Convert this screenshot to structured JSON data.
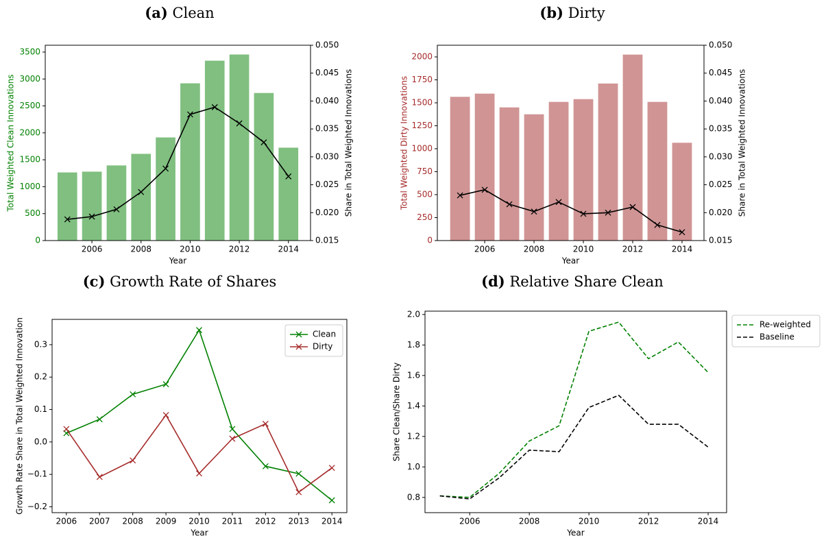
{
  "chart_data": [
    {
      "type": "bar",
      "panel_label": "(a)",
      "title": "Clean",
      "x": [
        2005,
        2006,
        2007,
        2008,
        2009,
        2010,
        2011,
        2012,
        2013,
        2014
      ],
      "values": [
        1265,
        1280,
        1395,
        1610,
        1915,
        2920,
        3340,
        3455,
        2740,
        1725
      ],
      "color": "#80bf80",
      "line": {
        "values": [
          0.0188,
          0.0193,
          0.0206,
          0.0237,
          0.0279,
          0.0376,
          0.0389,
          0.036,
          0.0326,
          0.0265
        ],
        "color": "#000000",
        "axis": "y2",
        "marker": "x"
      },
      "xlabel": "Year",
      "ylabel": "Total Weighted Clean Innovations",
      "ylabel_color": "#008000",
      "y2label": "Share in Total Weighted Innovations",
      "xlim": [
        2004.1,
        2014.9
      ],
      "xticks": [
        2006,
        2008,
        2010,
        2012,
        2014
      ],
      "ylim": [
        0,
        3627
      ],
      "yticks": [
        0,
        500,
        1000,
        1500,
        2000,
        2500,
        3000,
        3500
      ],
      "y2lim": [
        0.015,
        0.05
      ],
      "y2ticks": [
        {
          "value": 0.015,
          "label": "0.015"
        },
        {
          "value": 0.02,
          "label": "0.020"
        },
        {
          "value": 0.025,
          "label": "0.025"
        },
        {
          "value": 0.03,
          "label": "0.030"
        },
        {
          "value": 0.035,
          "label": "0.035"
        },
        {
          "value": 0.04,
          "label": "0.040"
        },
        {
          "value": 0.045,
          "label": "0.045"
        },
        {
          "value": 0.05,
          "label": "0.050"
        }
      ]
    },
    {
      "type": "bar",
      "panel_label": "(b)",
      "title": "Dirty",
      "x": [
        2005,
        2006,
        2007,
        2008,
        2009,
        2010,
        2011,
        2012,
        2013,
        2014
      ],
      "values": [
        1565,
        1600,
        1450,
        1375,
        1510,
        1540,
        1710,
        2025,
        1510,
        1065
      ],
      "color": "#d09494",
      "line": {
        "values": [
          0.0231,
          0.0241,
          0.0215,
          0.0202,
          0.0219,
          0.0198,
          0.02,
          0.021,
          0.0178,
          0.0165
        ],
        "color": "#000000",
        "axis": "y2",
        "marker": "x"
      },
      "xlabel": "Year",
      "ylabel": "Total Weighted Dirty Innovations",
      "ylabel_color": "#a52a2a",
      "y2label": "Share in Total Weighted Innovations",
      "xlim": [
        2004.08,
        2014.89
      ],
      "xticks": [
        2006,
        2008,
        2010,
        2012,
        2014
      ],
      "ylim": [
        0,
        2127
      ],
      "yticks": [
        0,
        250,
        500,
        750,
        1000,
        1250,
        1500,
        1750,
        2000
      ],
      "y2lim": [
        0.015,
        0.05
      ],
      "y2ticks": [
        {
          "value": 0.015,
          "label": "0.015"
        },
        {
          "value": 0.02,
          "label": "0.020"
        },
        {
          "value": 0.025,
          "label": "0.025"
        },
        {
          "value": 0.03,
          "label": "0.030"
        },
        {
          "value": 0.035,
          "label": "0.035"
        },
        {
          "value": 0.04,
          "label": "0.040"
        },
        {
          "value": 0.045,
          "label": "0.045"
        },
        {
          "value": 0.05,
          "label": "0.050"
        }
      ]
    },
    {
      "type": "line",
      "panel_label": "(c)",
      "title": "Growth Rate of Shares",
      "x": [
        2006,
        2007,
        2008,
        2009,
        2010,
        2011,
        2012,
        2013,
        2014
      ],
      "series": [
        {
          "name": "Clean",
          "color": "#008000",
          "marker": "x",
          "values": [
            0.027,
            0.07,
            0.147,
            0.178,
            0.345,
            0.04,
            -0.075,
            -0.098,
            -0.18
          ]
        },
        {
          "name": "Dirty",
          "color": "#a52a2a",
          "marker": "x",
          "values": [
            0.04,
            -0.108,
            -0.057,
            0.083,
            -0.097,
            0.01,
            0.056,
            -0.155,
            -0.08
          ]
        }
      ],
      "xlabel": "Year",
      "ylabel": "Growth Rate Share in Total Weighted Innovation",
      "xlim": [
        2005.57,
        2014.45
      ],
      "xticks": [
        2006,
        2007,
        2008,
        2009,
        2010,
        2011,
        2012,
        2013,
        2014
      ],
      "ylim": [
        -0.218,
        0.378
      ],
      "yticks": [
        {
          "value": -0.2,
          "label": "−0.2"
        },
        {
          "value": -0.1,
          "label": "−0.1"
        },
        {
          "value": 0,
          "label": "0.0"
        },
        {
          "value": 0.1,
          "label": "0.1"
        },
        {
          "value": 0.2,
          "label": "0.2"
        },
        {
          "value": 0.3,
          "label": "0.3"
        }
      ],
      "legend": "upper right"
    },
    {
      "type": "line",
      "panel_label": "(d)",
      "title": "Relative Share Clean",
      "x": [
        2005,
        2006,
        2007,
        2008,
        2009,
        2010,
        2011,
        2012,
        2013,
        2014
      ],
      "series": [
        {
          "name": "Re-weighted",
          "color": "#008000",
          "linestyle": "dashed",
          "values": [
            0.81,
            0.8,
            0.96,
            1.17,
            1.27,
            1.89,
            1.95,
            1.71,
            1.82,
            1.62
          ]
        },
        {
          "name": "Baseline",
          "color": "#000000",
          "linestyle": "dashed",
          "values": [
            0.81,
            0.79,
            0.93,
            1.11,
            1.1,
            1.39,
            1.47,
            1.28,
            1.28,
            1.13
          ]
        }
      ],
      "xlabel": "Year",
      "ylabel": "Share Clean/Share Dirty",
      "xlim": [
        2004.5,
        2014.62
      ],
      "xticks": [
        2006,
        2008,
        2010,
        2012,
        2014
      ],
      "ylim": [
        0.7,
        2.022
      ],
      "yticks": [
        {
          "value": 0.8,
          "label": "0.8"
        },
        {
          "value": 1.0,
          "label": "1.0"
        },
        {
          "value": 1.2,
          "label": "1.2"
        },
        {
          "value": 1.4,
          "label": "1.4"
        },
        {
          "value": 1.6,
          "label": "1.6"
        },
        {
          "value": 1.8,
          "label": "1.8"
        },
        {
          "value": 2.0,
          "label": "2.0"
        }
      ],
      "legend": "outside upper right"
    }
  ]
}
